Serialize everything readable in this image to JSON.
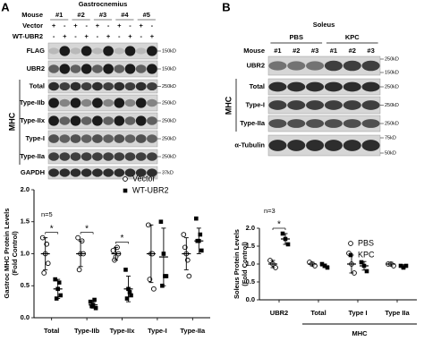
{
  "panel_a": {
    "letter": "A",
    "blot": {
      "title": "Gastrocnemius",
      "mouse_label": "Mouse",
      "mice": [
        "#1",
        "#2",
        "#3",
        "#4",
        "#5"
      ],
      "conditions": [
        {
          "name": "Vector",
          "signs": [
            "+",
            "-",
            "+",
            "-",
            "+",
            "-",
            "+",
            "-",
            "+",
            "-"
          ]
        },
        {
          "name": "WT-UBR2",
          "signs": [
            "-",
            "+",
            "-",
            "+",
            "-",
            "+",
            "-",
            "+",
            "-",
            "+"
          ]
        }
      ],
      "group_label": "MHC",
      "rows": [
        {
          "label": "FLAG",
          "sizes": [
            "150kD"
          ]
        },
        {
          "label": "UBR2",
          "sizes": [
            "150kD"
          ]
        },
        {
          "label": "Total",
          "sizes": [
            "250kD"
          ]
        },
        {
          "label": "Type-IIb",
          "sizes": [
            "250kD"
          ]
        },
        {
          "label": "Type-IIx",
          "sizes": [
            "250kD"
          ]
        },
        {
          "label": "Type-I",
          "sizes": [
            "250kD"
          ]
        },
        {
          "label": "Type-IIa",
          "sizes": [
            "250kD"
          ]
        },
        {
          "label": "GAPDH",
          "sizes": [
            "37kD"
          ]
        }
      ]
    }
  },
  "panel_b": {
    "letter": "B",
    "blot": {
      "title": "Soleus",
      "groups": [
        "PBS",
        "KPC"
      ],
      "mouse_label": "Mouse",
      "mice": [
        "#1",
        "#2",
        "#3",
        "#1",
        "#2",
        "#3"
      ],
      "group_label": "MHC",
      "rows": [
        {
          "label": "UBR2",
          "sizes": [
            "250kD",
            "150kD"
          ]
        },
        {
          "label": "Total",
          "sizes": [
            "250kD"
          ]
        },
        {
          "label": "Type-I",
          "sizes": [
            "250kD"
          ]
        },
        {
          "label": "Type-IIa",
          "sizes": [
            "250kD"
          ]
        },
        {
          "label": "α-Tubulin",
          "sizes": [
            "75kD",
            "50kD"
          ]
        }
      ]
    }
  },
  "chart_data": [
    {
      "type": "scatter",
      "ylabel": [
        "Gastroc MHC Protein Levels",
        "(Fold Control)"
      ],
      "annotation": "n=5",
      "categories": [
        "Total",
        "Type-IIb",
        "Type-IIx",
        "Type-I",
        "Type-IIa"
      ],
      "series": [
        {
          "name": "Vector",
          "marker": "open-circle",
          "color": "#000000",
          "values": [
            [
              1.25,
              1.0,
              0.85,
              0.7,
              1.15
            ],
            [
              1.25,
              1.0,
              1.0,
              0.75,
              1.2
            ],
            [
              1.05,
              0.95,
              1.0,
              0.9,
              1.1
            ],
            [
              1.45,
              1.0,
              0.45,
              0.6,
              1.0
            ],
            [
              1.3,
              1.0,
              0.65,
              1.1,
              0.9
            ]
          ],
          "means": [
            1.0,
            1.0,
            1.0,
            1.0,
            1.0
          ],
          "sd": [
            0.25,
            0.2,
            0.1,
            0.45,
            0.25
          ]
        },
        {
          "name": "WT-UBR2",
          "marker": "filled-square",
          "color": "#000000",
          "values": [
            [
              0.6,
              0.45,
              0.35,
              0.3,
              0.55
            ],
            [
              0.25,
              0.2,
              0.15,
              0.18,
              0.28
            ],
            [
              0.75,
              0.45,
              0.35,
              0.3,
              0.4
            ],
            [
              1.5,
              1.0,
              0.65,
              0.5,
              0.65
            ],
            [
              1.55,
              1.2,
              1.05,
              1.2,
              1.3
            ]
          ],
          "means": [
            0.45,
            0.2,
            0.45,
            0.95,
            1.2
          ],
          "sd": [
            0.15,
            0.05,
            0.2,
            0.45,
            0.2
          ]
        }
      ],
      "significance": {
        "label": "*",
        "categories": [
          0,
          1,
          2
        ]
      },
      "ylim": [
        0,
        2
      ],
      "yticks": [
        {
          "value": 0,
          "label": "0.0"
        },
        {
          "value": 0.5,
          "label": "0.5"
        },
        {
          "value": 1,
          "label": "1.0"
        },
        {
          "value": 1.5,
          "label": "1.5"
        },
        {
          "value": 2,
          "label": "2.0"
        }
      ]
    },
    {
      "type": "scatter",
      "ylabel": [
        "Soleus Protein Levels",
        "(Fold Control)"
      ],
      "annotation": "n=3",
      "categories": [
        "UBR2",
        "Total",
        "Type I",
        "Type IIa"
      ],
      "group": {
        "label": "MHC",
        "categories": [
          1,
          2,
          3
        ]
      },
      "series": [
        {
          "name": "PBS",
          "marker": "open-circle",
          "color": "#000000",
          "values": [
            [
              1.1,
              1.0,
              0.9
            ],
            [
              1.05,
              1.0,
              0.95
            ],
            [
              1.3,
              1.0,
              0.75
            ],
            [
              1.0,
              1.0,
              0.95
            ]
          ],
          "means": [
            1.0,
            1.0,
            1.0,
            1.0
          ],
          "sd": [
            0.1,
            0.05,
            0.25,
            0.05
          ]
        },
        {
          "name": "KPC",
          "marker": "filled-square",
          "color": "#000000",
          "values": [
            [
              1.85,
              1.7,
              1.55
            ],
            [
              1.0,
              0.95,
              0.9
            ],
            [
              1.05,
              0.95,
              0.8
            ],
            [
              0.95,
              0.9,
              0.95
            ]
          ],
          "means": [
            1.7,
            0.95,
            0.95,
            0.93
          ],
          "sd": [
            0.15,
            0.05,
            0.12,
            0.05
          ]
        }
      ],
      "significance": {
        "label": "*",
        "categories": [
          0
        ]
      },
      "ylim": [
        0,
        2
      ],
      "yticks": [
        {
          "value": 0,
          "label": "0.0"
        },
        {
          "value": 0.5,
          "label": "0.5"
        },
        {
          "value": 1,
          "label": "1.0"
        },
        {
          "value": 1.5,
          "label": "1.5"
        },
        {
          "value": 2,
          "label": "2.0"
        }
      ]
    }
  ]
}
